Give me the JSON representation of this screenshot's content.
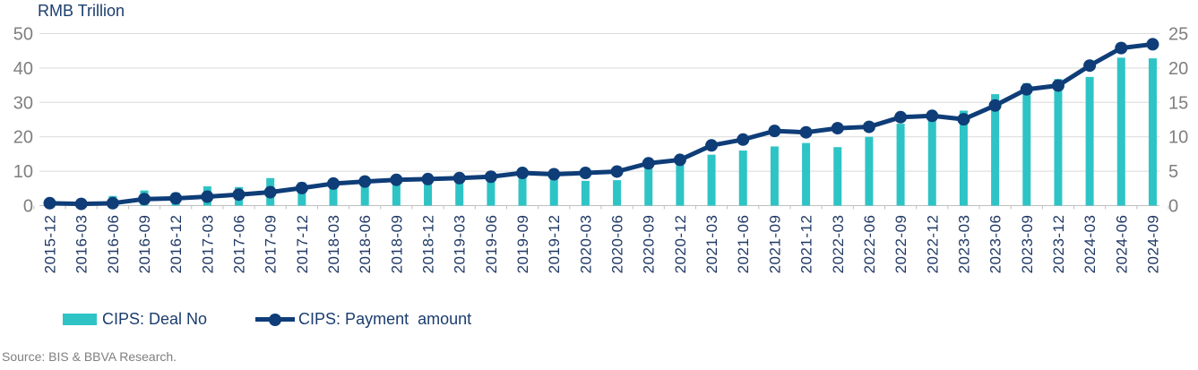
{
  "title": "RMB Trillion",
  "source": "Source: BIS & BBVA Research.",
  "colors": {
    "bar": "#2EC4C6",
    "line": "#0E3D78",
    "grid": "#D9D9D9",
    "axis": "#BFBFBF",
    "tick_text": "#7F7F7F",
    "category_text": "#1F3864",
    "navy_text": "#1B3D6E"
  },
  "legend": [
    {
      "label": "CIPS: Deal No",
      "type": "bar",
      "color": "#2EC4C6"
    },
    {
      "label": "CIPS: Payment  amount",
      "type": "line",
      "color": "#0E3D78"
    }
  ],
  "chart_data": {
    "type": "bar",
    "subtype": "combo-bar-line-dual-axis",
    "title": "RMB Trillion",
    "grid": true,
    "legend_position": "bottom",
    "categories": [
      "2015-12",
      "2016-03",
      "2016-06",
      "2016-09",
      "2016-12",
      "2017-03",
      "2017-06",
      "2017-09",
      "2017-12",
      "2018-03",
      "2018-06",
      "2018-09",
      "2018-12",
      "2019-03",
      "2019-06",
      "2019-09",
      "2019-12",
      "2020-03",
      "2020-06",
      "2020-09",
      "2020-12",
      "2021-03",
      "2021-06",
      "2021-09",
      "2021-12",
      "2022-03",
      "2022-06",
      "2022-09",
      "2022-12",
      "2023-03",
      "2023-06",
      "2023-09",
      "2023-12",
      "2024-03",
      "2024-06",
      "2024-09"
    ],
    "series": [
      {
        "name": "CIPS: Deal No",
        "type": "bar",
        "axis": "right",
        "color": "#2EC4C6",
        "values": [
          0.2,
          0.3,
          1.4,
          2.2,
          1.9,
          2.8,
          2.7,
          4.0,
          3.4,
          3.4,
          3.7,
          3.9,
          4.0,
          4.1,
          4.2,
          5.0,
          4.7,
          3.6,
          3.7,
          5.5,
          5.9,
          7.4,
          8.0,
          8.6,
          9.1,
          8.5,
          10.0,
          11.9,
          13.4,
          13.8,
          16.2,
          17.8,
          18.4,
          18.7,
          21.5,
          21.4
        ]
      },
      {
        "name": "CIPS: Payment  amount",
        "type": "line",
        "axis": "left",
        "color": "#0E3D78",
        "values": [
          0.7,
          0.5,
          0.7,
          1.9,
          2.1,
          2.6,
          3.2,
          3.9,
          5.1,
          6.4,
          7.0,
          7.5,
          7.7,
          8.0,
          8.4,
          9.5,
          9.1,
          9.5,
          9.9,
          12.3,
          13.3,
          17.5,
          19.2,
          21.7,
          21.3,
          22.5,
          22.9,
          25.7,
          26.1,
          25.1,
          29.1,
          33.8,
          34.9,
          40.7,
          45.8,
          46.9
        ]
      }
    ],
    "left_axis": {
      "label": "RMB Trillion",
      "range": [
        0,
        50
      ],
      "ticks": [
        0,
        10,
        20,
        30,
        40,
        50
      ]
    },
    "right_axis": {
      "label": "",
      "range": [
        0,
        25
      ],
      "ticks": [
        0,
        5,
        10,
        15,
        20,
        25
      ]
    }
  }
}
